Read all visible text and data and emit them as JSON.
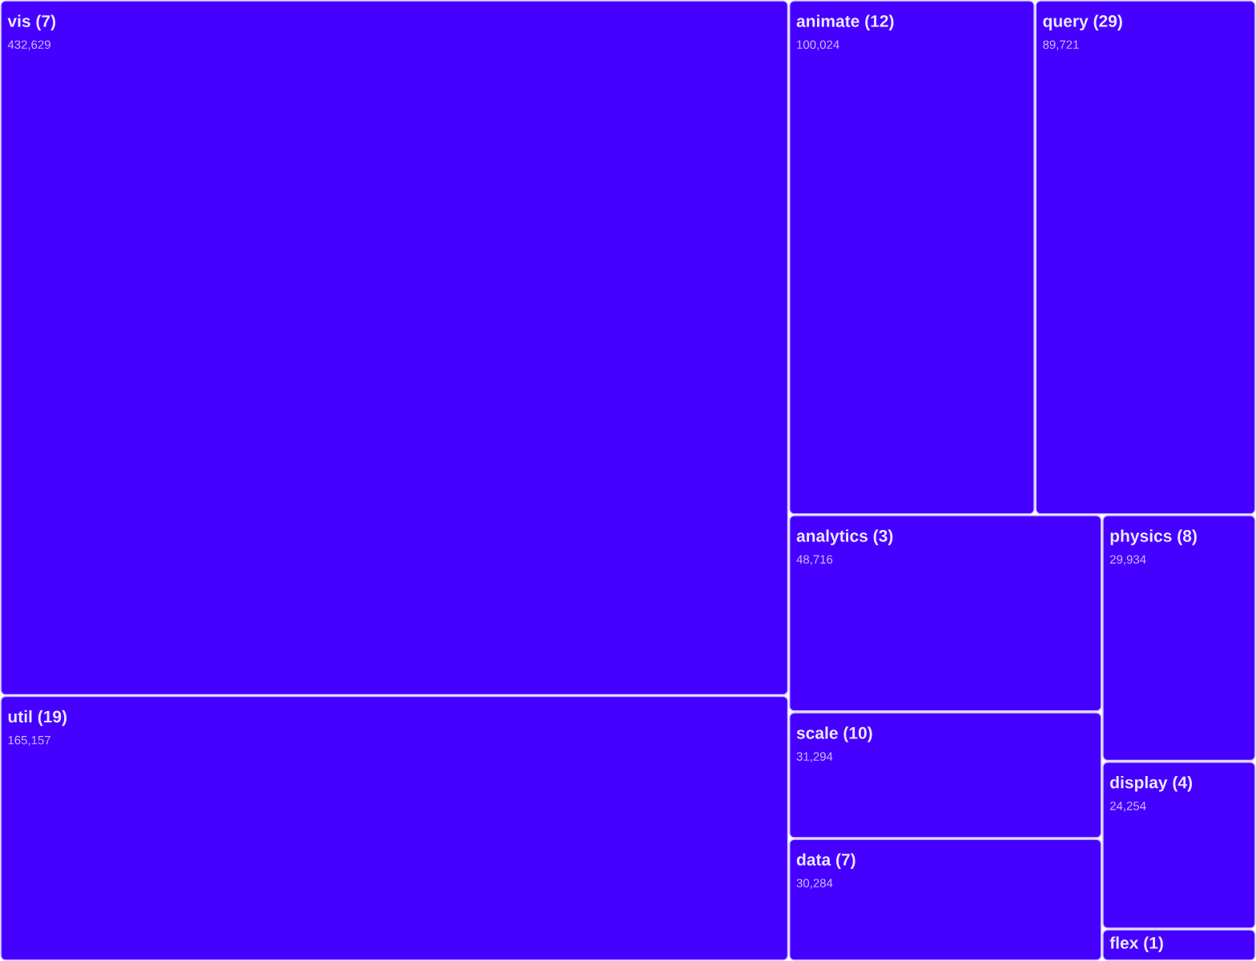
{
  "chart_data": {
    "type": "other",
    "categories": [
      "vis (7)",
      "util (19)",
      "animate (12)",
      "query (29)",
      "analytics (3)",
      "scale (10)",
      "data (7)",
      "physics (8)",
      "display (4)",
      "flex (1)"
    ],
    "values": [
      432629,
      165157,
      100024,
      89721,
      48716,
      31294,
      30284,
      29934,
      24254,
      null
    ],
    "value_labels": [
      "432,629",
      "165,157",
      "100,024",
      "89,721",
      "48,716",
      "31,294",
      "30,284",
      "29,934",
      "24,254",
      null
    ],
    "color": "#4600ff"
  }
}
